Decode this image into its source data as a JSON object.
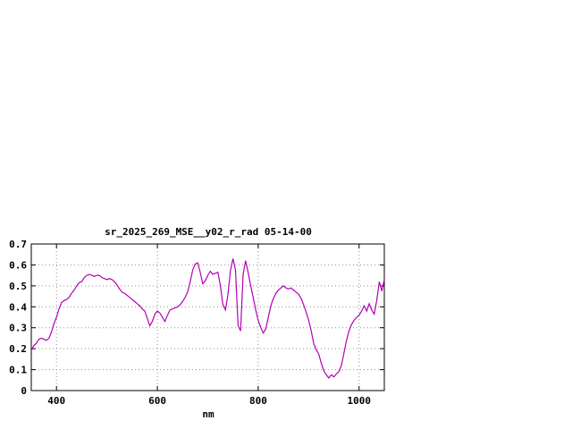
{
  "page": {
    "background": "#ffffff",
    "text_color": "#000000"
  },
  "chart_data": {
    "type": "line",
    "title": "sr_2025_269_MSE__y02_r_rad 05-14-00",
    "xlabel": "nm",
    "ylabel": "",
    "xlim": [
      350,
      1050
    ],
    "ylim": [
      0,
      0.7
    ],
    "x_ticks": [
      400,
      600,
      800,
      1000
    ],
    "y_ticks": [
      0,
      0.1,
      0.2,
      0.3,
      0.4,
      0.5,
      0.6,
      0.7
    ],
    "grid": true,
    "legend": "none",
    "line_color": "#b400b4",
    "grid_color": "#909090",
    "border_color": "#000000",
    "series": [
      {
        "name": "sr_2025_269_MSE__y02_r_rad",
        "x": [
          350,
          355,
          360,
          365,
          370,
          375,
          380,
          385,
          390,
          395,
          400,
          405,
          410,
          415,
          420,
          425,
          430,
          435,
          440,
          445,
          450,
          455,
          460,
          465,
          470,
          475,
          480,
          485,
          490,
          495,
          500,
          505,
          510,
          515,
          520,
          525,
          530,
          535,
          540,
          545,
          550,
          555,
          560,
          565,
          570,
          575,
          580,
          585,
          590,
          595,
          600,
          605,
          610,
          615,
          620,
          625,
          630,
          635,
          640,
          645,
          650,
          655,
          660,
          665,
          670,
          675,
          680,
          685,
          690,
          695,
          700,
          705,
          710,
          715,
          720,
          725,
          730,
          735,
          740,
          745,
          750,
          755,
          760,
          765,
          770,
          775,
          780,
          785,
          790,
          795,
          800,
          805,
          810,
          815,
          820,
          825,
          830,
          835,
          840,
          845,
          850,
          855,
          860,
          865,
          870,
          875,
          880,
          885,
          890,
          895,
          900,
          905,
          910,
          915,
          920,
          925,
          930,
          935,
          940,
          945,
          950,
          955,
          960,
          965,
          970,
          975,
          980,
          985,
          990,
          995,
          1000,
          1005,
          1010,
          1015,
          1020,
          1025,
          1030,
          1035,
          1040,
          1045,
          1050
        ],
        "y": [
          0.19,
          0.215,
          0.225,
          0.245,
          0.25,
          0.245,
          0.24,
          0.25,
          0.28,
          0.32,
          0.35,
          0.39,
          0.42,
          0.43,
          0.435,
          0.445,
          0.465,
          0.48,
          0.5,
          0.515,
          0.52,
          0.54,
          0.55,
          0.555,
          0.55,
          0.545,
          0.55,
          0.55,
          0.54,
          0.535,
          0.53,
          0.535,
          0.53,
          0.52,
          0.505,
          0.485,
          0.47,
          0.465,
          0.455,
          0.445,
          0.435,
          0.425,
          0.415,
          0.405,
          0.39,
          0.38,
          0.345,
          0.31,
          0.33,
          0.365,
          0.38,
          0.37,
          0.35,
          0.33,
          0.36,
          0.385,
          0.39,
          0.395,
          0.4,
          0.41,
          0.425,
          0.445,
          0.47,
          0.52,
          0.575,
          0.605,
          0.61,
          0.565,
          0.51,
          0.525,
          0.55,
          0.57,
          0.555,
          0.56,
          0.565,
          0.5,
          0.41,
          0.385,
          0.46,
          0.575,
          0.63,
          0.575,
          0.31,
          0.285,
          0.555,
          0.62,
          0.565,
          0.5,
          0.445,
          0.385,
          0.335,
          0.3,
          0.275,
          0.295,
          0.35,
          0.405,
          0.44,
          0.465,
          0.48,
          0.49,
          0.5,
          0.49,
          0.485,
          0.49,
          0.48,
          0.47,
          0.46,
          0.44,
          0.41,
          0.375,
          0.335,
          0.285,
          0.225,
          0.195,
          0.175,
          0.13,
          0.095,
          0.075,
          0.06,
          0.075,
          0.065,
          0.08,
          0.09,
          0.12,
          0.18,
          0.24,
          0.285,
          0.315,
          0.335,
          0.35,
          0.36,
          0.38,
          0.405,
          0.38,
          0.415,
          0.385,
          0.365,
          0.43,
          0.52,
          0.475,
          0.53
        ]
      }
    ]
  }
}
